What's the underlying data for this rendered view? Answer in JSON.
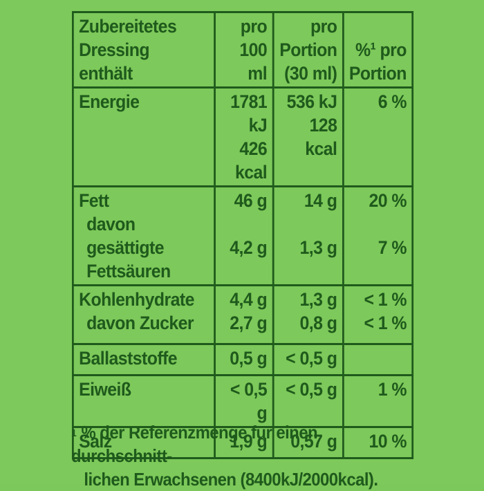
{
  "table": {
    "header": {
      "col1": [
        "Zubereitetes",
        "Dressing",
        "enthält"
      ],
      "col2": [
        "pro",
        "100 ml"
      ],
      "col3": [
        "pro",
        "Portion",
        "(30 ml)"
      ],
      "col4": [
        "%¹ pro",
        "Portion"
      ]
    },
    "rows": [
      {
        "label": [
          "Energie"
        ],
        "per100": [
          "1781 kJ",
          "426 kcal"
        ],
        "portion": [
          "536 kJ",
          "128 kcal"
        ],
        "pct": [
          "6 %"
        ]
      },
      {
        "label": [
          "Fett",
          "davon gesättigte",
          "Fettsäuren"
        ],
        "per100": [
          "46 g",
          "",
          "4,2 g"
        ],
        "portion": [
          "14 g",
          "",
          "1,3 g"
        ],
        "pct": [
          "20 %",
          "",
          "7 %"
        ]
      },
      {
        "label": [
          "Kohlenhydrate",
          "davon Zucker"
        ],
        "per100": [
          "4,4 g",
          "2,7 g"
        ],
        "portion": [
          "1,3 g",
          "0,8 g"
        ],
        "pct": [
          "< 1 %",
          "< 1 %"
        ]
      },
      {
        "label": [
          "Ballaststoffe"
        ],
        "per100": [
          "0,5 g"
        ],
        "portion": [
          "< 0,5 g"
        ],
        "pct": [
          ""
        ]
      },
      {
        "label": [
          "Eiweiß"
        ],
        "per100": [
          "< 0,5 g"
        ],
        "portion": [
          "< 0,5 g"
        ],
        "pct": [
          "1 %"
        ]
      },
      {
        "label": [
          "Salz"
        ],
        "per100": [
          "1,9 g"
        ],
        "portion": [
          "0,57 g"
        ],
        "pct": [
          "10 %"
        ]
      }
    ]
  },
  "footnote": {
    "marker": "1",
    "line1": "% der Referenzmenge für einen durchschnitt-",
    "line2": "lichen Erwachsenen (8400kJ/2000kcal)."
  }
}
